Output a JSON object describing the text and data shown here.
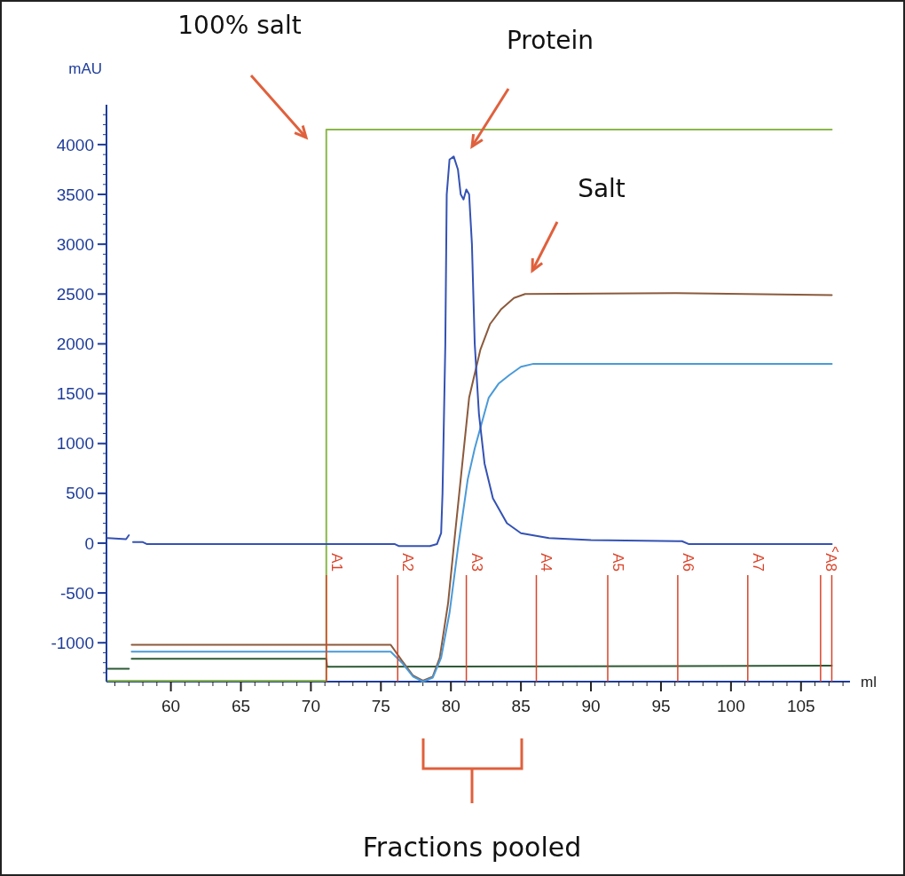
{
  "chart_data": {
    "type": "line",
    "xlabel": "ml",
    "ylabel": "mAU",
    "xlim": [
      55.4,
      108.5
    ],
    "ylim": [
      -1390,
      4400
    ],
    "xticks": [
      60,
      65,
      70,
      75,
      80,
      85,
      90,
      95,
      100,
      105
    ],
    "yticks": [
      -1000,
      -500,
      0,
      500,
      1000,
      1500,
      2000,
      2500,
      3000,
      3500,
      4000
    ],
    "grid": false,
    "marker": "none",
    "line_style": "solid",
    "series": [
      {
        "color": "#8ab84a",
        "x": [
          55.5,
          71.1,
          71.1,
          107.2
        ],
        "values": [
          -1380,
          -1380,
          4150,
          4150
        ]
      },
      {
        "color": "#2e5a36",
        "x": [
          55.5,
          57.0,
          57.1,
          57.2,
          71.1,
          71.15,
          107.2
        ],
        "values": [
          -1260,
          -1260,
          null,
          -1160,
          -1160,
          -1240,
          -1230
        ]
      },
      {
        "color": "#8b5a3c",
        "x": [
          57.2,
          75.7,
          76.5,
          77.3,
          78.0,
          78.7,
          79.2,
          79.8,
          80.3,
          80.8,
          81.3,
          82.1,
          82.8,
          83.6,
          84.5,
          85.3,
          96,
          107.2
        ],
        "values": [
          -1020,
          -1020,
          -1180,
          -1330,
          -1380,
          -1340,
          -1150,
          -600,
          100,
          780,
          1460,
          1940,
          2200,
          2350,
          2460,
          2500,
          2510,
          2490
        ]
      },
      {
        "color": "#4a9ad8",
        "x": [
          57.2,
          75.7,
          76.5,
          77.3,
          78.0,
          78.7,
          79.3,
          79.9,
          80.5,
          81.2,
          81.7,
          82.7,
          83.4,
          84.2,
          85.0,
          85.9,
          107.2
        ],
        "values": [
          -1090,
          -1090,
          -1200,
          -1340,
          -1390,
          -1350,
          -1150,
          -700,
          -50,
          640,
          950,
          1460,
          1600,
          1690,
          1770,
          1800,
          1800
        ]
      },
      {
        "color": "#3452b4",
        "x": [
          55.5,
          56.8,
          57.0,
          57.1,
          57.3,
          58.0,
          58.3,
          76.0,
          76.3,
          78.5,
          79.0,
          79.3,
          79.4,
          79.6,
          79.7,
          79.9,
          80.2,
          80.5,
          80.7,
          80.9,
          81.1,
          81.3,
          81.5,
          81.7,
          82.0,
          82.4,
          83.0,
          84.0,
          85.0,
          87.0,
          90.0,
          96.5,
          97.0,
          107.2
        ],
        "values": [
          50,
          40,
          80,
          null,
          10,
          10,
          -10,
          -10,
          -30,
          -30,
          -10,
          100,
          500,
          2000,
          3500,
          3850,
          3880,
          3750,
          3500,
          3450,
          3550,
          3500,
          3000,
          2000,
          1300,
          800,
          450,
          200,
          100,
          50,
          30,
          20,
          -10,
          -10
        ]
      }
    ],
    "ref_lines": [
      {
        "axis": "x",
        "value": 71.1,
        "label": "A1",
        "color": "#d9442a"
      },
      {
        "axis": "x",
        "value": 76.2,
        "label": "A2",
        "color": "#d9442a"
      },
      {
        "axis": "x",
        "value": 81.1,
        "label": "A3",
        "color": "#d9442a"
      },
      {
        "axis": "x",
        "value": 86.1,
        "label": "A4",
        "color": "#d9442a"
      },
      {
        "axis": "x",
        "value": 91.2,
        "label": "A5",
        "color": "#d9442a"
      },
      {
        "axis": "x",
        "value": 96.2,
        "label": "A6",
        "color": "#d9442a"
      },
      {
        "axis": "x",
        "value": 101.2,
        "label": "A7",
        "color": "#d9442a"
      },
      {
        "axis": "x",
        "value": 106.4,
        "label": "A8",
        "color": "#d9442a"
      },
      {
        "axis": "x",
        "value": 107.2,
        "label": "^",
        "color": "#d9442a"
      }
    ],
    "annotations": [
      "100% salt",
      "Protein",
      "Salt",
      "Fractions pooled"
    ]
  }
}
